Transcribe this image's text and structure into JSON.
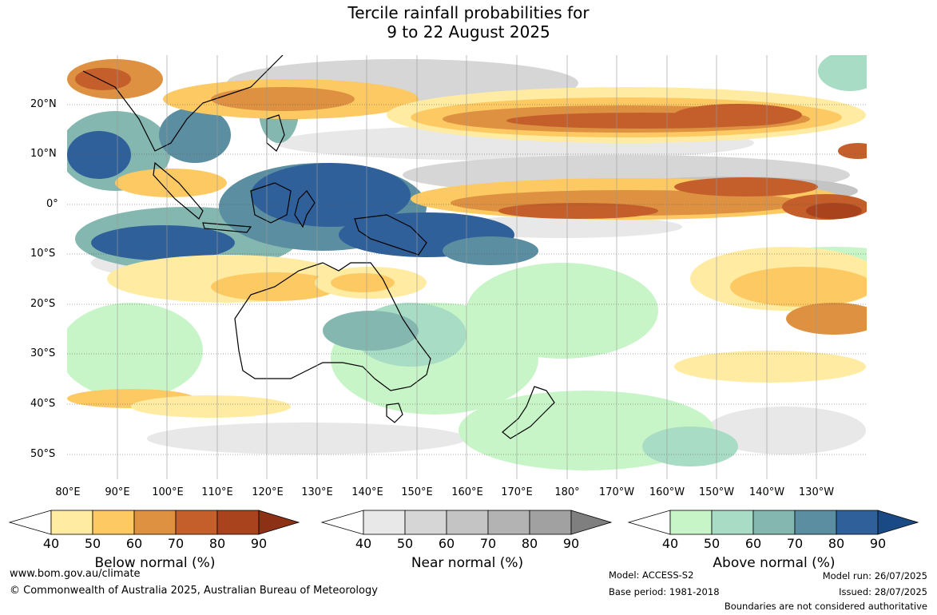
{
  "title": {
    "line1": "Tercile rainfall probabilities for",
    "line2": "9 to 22 August 2025"
  },
  "map": {
    "latitude_labels": [
      "20°N",
      "10°N",
      "0°",
      "10°S",
      "20°S",
      "30°S",
      "40°S",
      "50°S"
    ],
    "longitude_labels": [
      "80°E",
      "90°E",
      "100°E",
      "110°E",
      "120°E",
      "130°E",
      "140°E",
      "150°E",
      "160°E",
      "170°E",
      "180°",
      "170°W",
      "160°W",
      "150°W",
      "140°W",
      "130°W"
    ]
  },
  "colorbars": [
    {
      "label": "Below normal (%)",
      "ticks": [
        "40",
        "50",
        "60",
        "70",
        "80",
        "90"
      ],
      "colors": [
        "#ffffff",
        "#ffeba1",
        "#fdc962",
        "#dd9141",
        "#c45f2c",
        "#a8431e",
        "#8c3016"
      ]
    },
    {
      "label": "Near normal (%)",
      "ticks": [
        "40",
        "50",
        "60",
        "70",
        "80",
        "90"
      ],
      "colors": [
        "#ffffff",
        "#e8e8e8",
        "#d6d6d6",
        "#c4c4c4",
        "#b3b3b3",
        "#a1a1a1",
        "#7f7f7f"
      ]
    },
    {
      "label": "Above normal (%)",
      "ticks": [
        "40",
        "50",
        "60",
        "70",
        "80",
        "90"
      ],
      "colors": [
        "#ffffff",
        "#c8f5c8",
        "#a8dcc4",
        "#84b7b0",
        "#5b8ea0",
        "#30609a",
        "#1a4a85"
      ]
    }
  ],
  "footer": {
    "url": "www.bom.gov.au/climate",
    "copyright": "© Commonwealth of Australia 2025, Australian Bureau of Meteorology",
    "model": "Model: ACCESS-S2",
    "base_period": "Base period: 1981-2018",
    "model_run": "Model run: 26/07/2025",
    "issued": "Issued: 28/07/2025",
    "disclaimer": "Boundaries are not considered authoritative"
  }
}
